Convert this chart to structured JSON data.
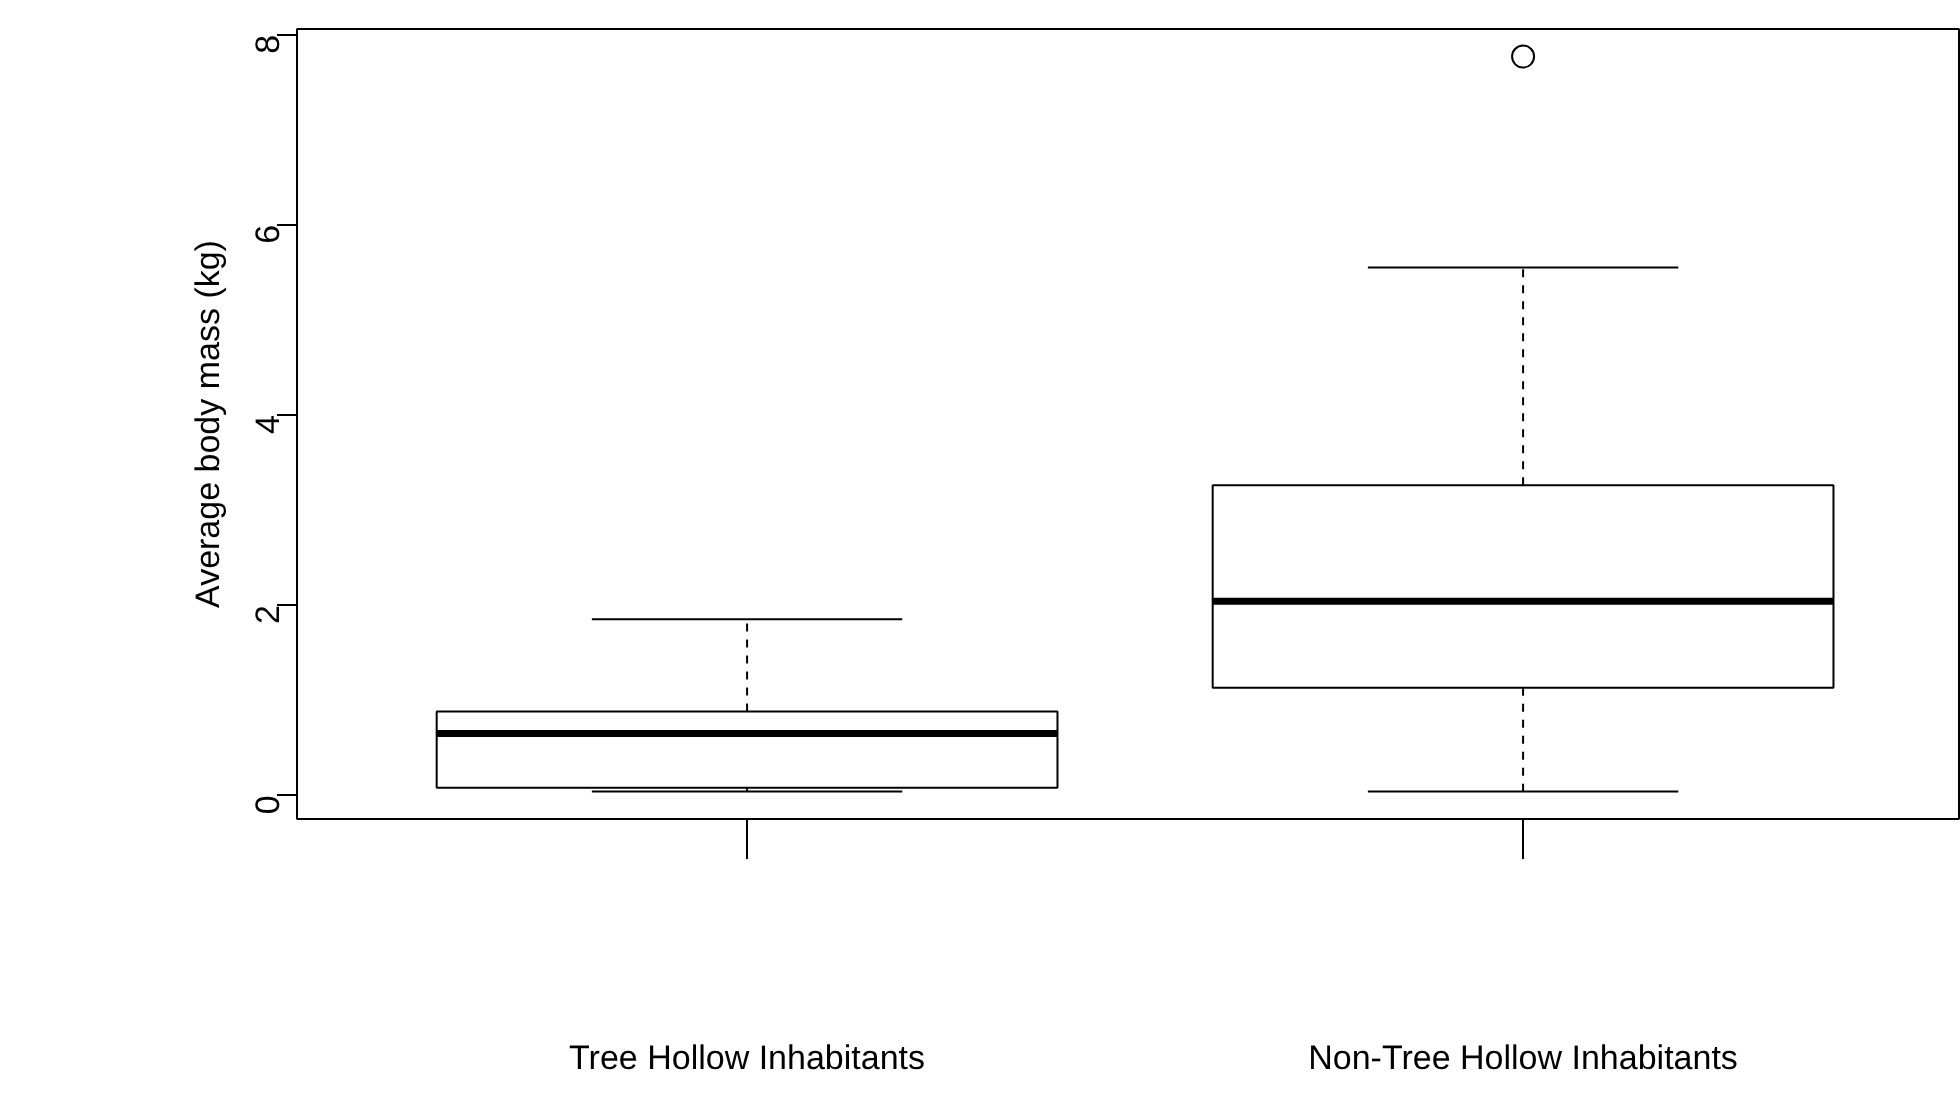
{
  "chart_data": {
    "type": "box",
    "ylabel": "Average body mass (kg)",
    "categories": [
      "Tree Hollow Inhabitants",
      "Non-Tree Hollow Inhabitants"
    ],
    "boxes": [
      {
        "low": 0.04,
        "q1": 0.08,
        "median": 0.65,
        "q3": 0.88,
        "high": 1.85
      },
      {
        "low": 0.04,
        "q1": 1.13,
        "median": 2.04,
        "q3": 3.26,
        "high": 5.55,
        "outliers": [
          7.77
        ]
      }
    ],
    "ylim": [
      -0.25,
      8.06
    ],
    "yticks": [
      0,
      2,
      4,
      6,
      8
    ],
    "grid": false
  }
}
